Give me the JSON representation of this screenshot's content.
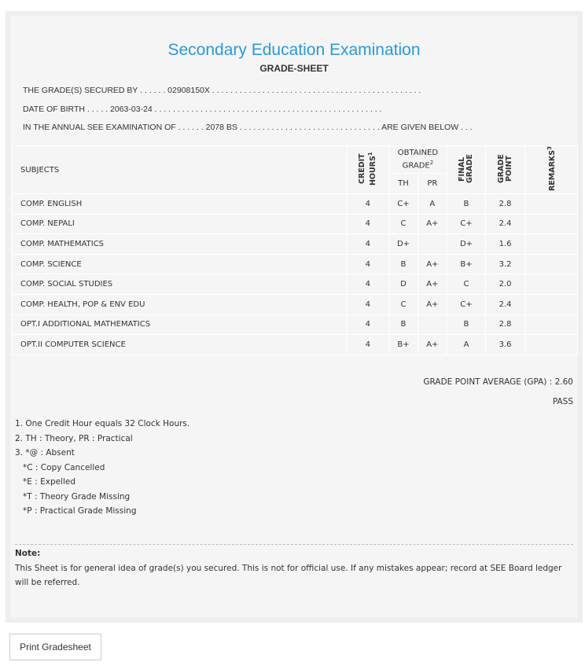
{
  "title": "Secondary Education Examination",
  "subtitle": "GRADE-SHEET",
  "info": {
    "secured_by": "THE GRADE(S) SECURED BY . . . . . . 02908150X . . . . . . . . . . . . . . . . . . . . . . . . . . . . . . . . . . . . . . . . . . . . . .",
    "dob": "DATE OF BIRTH . . . . . 2063-03-24 . . . . . . . . . . . . . . . . . . . . . . . . . . . . . . . . . . . . . . . . . . . . . . . . . .",
    "exam": "IN THE ANNUAL SEE EXAMINATION OF . . . . . . 2078 BS . . . . . . . . . . . . . . . . . . . . . . . . . . . . . . . ARE GIVEN BELOW . . ."
  },
  "headers": {
    "subjects": "SUBJECTS",
    "credit": "CREDIT HOURS",
    "credit_sup": "1",
    "obtained": "OBTAINED GRADE",
    "obtained_sup": "2",
    "th": "TH",
    "pr": "PR",
    "final": "FINAL GRADE",
    "gp": "GRADE POINT",
    "remarks": "REMARKS",
    "remarks_sup": "3"
  },
  "rows": [
    {
      "subject": "COMP. ENGLISH",
      "credit": "4",
      "th": "C+",
      "pr": "A",
      "final": "B",
      "gp": "2.8",
      "remarks": ""
    },
    {
      "subject": "COMP. NEPALI",
      "credit": "4",
      "th": "C",
      "pr": "A+",
      "final": "C+",
      "gp": "2.4",
      "remarks": ""
    },
    {
      "subject": "COMP. MATHEMATICS",
      "credit": "4",
      "th": "D+",
      "pr": "",
      "final": "D+",
      "gp": "1.6",
      "remarks": ""
    },
    {
      "subject": "COMP. SCIENCE",
      "credit": "4",
      "th": "B",
      "pr": "A+",
      "final": "B+",
      "gp": "3.2",
      "remarks": ""
    },
    {
      "subject": "COMP. SOCIAL STUDIES",
      "credit": "4",
      "th": "D",
      "pr": "A+",
      "final": "C",
      "gp": "2.0",
      "remarks": ""
    },
    {
      "subject": "COMP. HEALTH, POP & ENV EDU",
      "credit": "4",
      "th": "C",
      "pr": "A+",
      "final": "C+",
      "gp": "2.4",
      "remarks": ""
    },
    {
      "subject": "OPT.I ADDITIONAL MATHEMATICS",
      "credit": "4",
      "th": "B",
      "pr": "",
      "final": "B",
      "gp": "2.8",
      "remarks": ""
    },
    {
      "subject": "OPT.II COMPUTER SCIENCE",
      "credit": "4",
      "th": "B+",
      "pr": "A+",
      "final": "A",
      "gp": "3.6",
      "remarks": ""
    }
  ],
  "gpa": "GRADE POINT AVERAGE (GPA) : 2.60",
  "result": "PASS",
  "legend": [
    "1. One Credit Hour equals 32 Clock Hours.",
    "2. TH : Theory, PR : Practical",
    "3. *@ : Absent",
    "   *C : Copy Cancelled",
    "   *E : Expelled",
    "   *T : Theory Grade Missing",
    "   *P : Practical Grade Missing"
  ],
  "note_title": "Note:",
  "note_text": "This Sheet is for general idea of grade(s) you secured. This is not for official use. If any mistakes appear; record at SEE Board ledger will be referred.",
  "print_button": "Print Gradesheet"
}
